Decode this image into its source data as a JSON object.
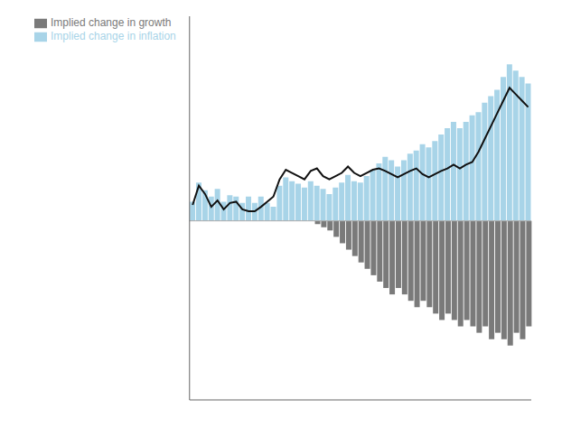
{
  "chart_data": {
    "type": "bar",
    "categories": [
      null,
      null,
      null,
      null,
      null,
      null,
      null,
      null,
      null,
      null,
      null,
      null,
      null,
      null,
      null,
      null,
      null,
      null,
      null,
      null,
      null,
      null,
      null,
      null,
      null,
      null,
      null,
      null,
      null,
      null,
      null,
      null,
      null,
      null,
      null,
      null,
      null,
      null,
      null,
      null,
      null,
      null,
      null,
      null,
      null,
      null,
      null,
      null,
      null,
      null,
      null,
      null,
      null,
      null,
      null
    ],
    "series": [
      {
        "name": "Implied change in growth",
        "type": "bar",
        "color": "#7a7a7a",
        "values": [
          0.0,
          0.0,
          0.0,
          0.0,
          0.0,
          0.0,
          0.0,
          0.0,
          0.0,
          0.0,
          0.0,
          0.0,
          0.0,
          0.0,
          0.0,
          0.0,
          0.0,
          0.0,
          0.0,
          0.0,
          -0.05,
          -0.1,
          -0.15,
          -0.25,
          -0.35,
          -0.45,
          -0.55,
          -0.65,
          -0.75,
          -0.85,
          -0.95,
          -1.05,
          -1.15,
          -1.05,
          -1.15,
          -1.25,
          -1.35,
          -1.25,
          -1.35,
          -1.45,
          -1.55,
          -1.45,
          -1.55,
          -1.65,
          -1.55,
          -1.65,
          -1.75,
          -1.65,
          -1.85,
          -1.75,
          -1.85,
          -1.95,
          -1.75,
          -1.85,
          -1.65
        ]
      },
      {
        "name": "Implied change in inflation",
        "type": "bar",
        "color": "#a8d4e8",
        "values": [
          0.3,
          0.6,
          0.48,
          0.38,
          0.5,
          0.3,
          0.4,
          0.38,
          0.28,
          0.38,
          0.28,
          0.38,
          0.28,
          0.22,
          0.55,
          0.68,
          0.62,
          0.58,
          0.52,
          0.62,
          0.55,
          0.5,
          0.42,
          0.52,
          0.6,
          0.72,
          0.62,
          0.6,
          0.7,
          0.8,
          0.9,
          1.0,
          0.95,
          0.85,
          0.95,
          1.05,
          1.1,
          1.2,
          1.15,
          1.25,
          1.35,
          1.45,
          1.55,
          1.45,
          1.55,
          1.65,
          1.7,
          1.85,
          1.95,
          2.05,
          2.25,
          2.45,
          2.35,
          2.25,
          2.15
        ]
      },
      {
        "type": "line",
        "color": "#111111",
        "values": [
          0.25,
          0.55,
          0.42,
          0.22,
          0.32,
          0.18,
          0.28,
          0.3,
          0.18,
          0.15,
          0.15,
          0.22,
          0.3,
          0.38,
          0.65,
          0.8,
          0.75,
          0.7,
          0.65,
          0.78,
          0.82,
          0.7,
          0.65,
          0.7,
          0.75,
          0.85,
          0.75,
          0.7,
          0.75,
          0.8,
          0.82,
          0.78,
          0.73,
          0.68,
          0.73,
          0.78,
          0.82,
          0.73,
          0.68,
          0.73,
          0.78,
          0.82,
          0.88,
          0.82,
          0.88,
          0.92,
          1.08,
          1.28,
          1.48,
          1.68,
          1.88,
          2.08,
          1.98,
          1.88,
          1.78
        ]
      }
    ],
    "ylim": [
      -2.8,
      3.2
    ],
    "tick_labels": false,
    "legend": "upper left"
  }
}
